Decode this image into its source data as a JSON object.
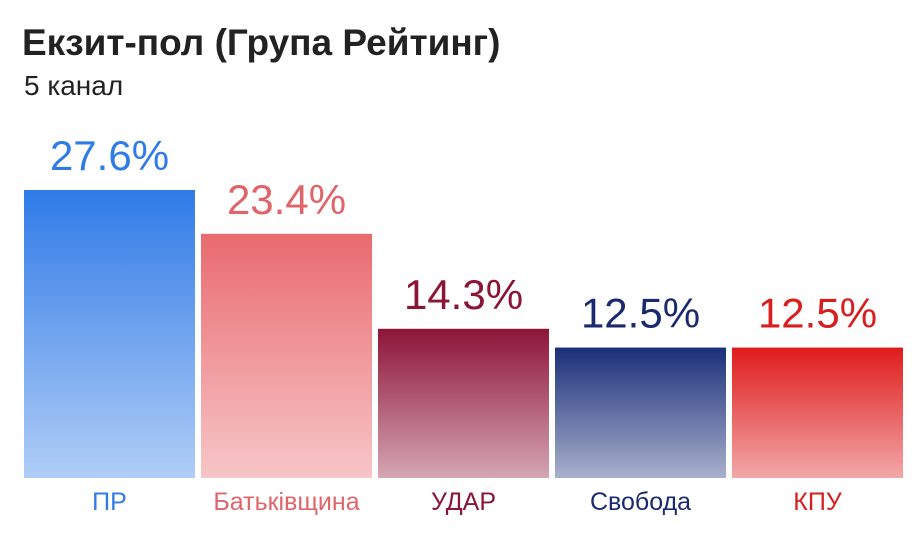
{
  "chart_data": {
    "type": "bar",
    "title": "Екзит-пол (Група Рейтинг)",
    "subtitle": "5 канал",
    "categories": [
      "ПР",
      "Батьківщина",
      "УДАР",
      "Свобода",
      "КПУ"
    ],
    "values": [
      27.6,
      23.4,
      14.3,
      12.5,
      12.5
    ],
    "value_labels": [
      "27.6%",
      "23.4%",
      "14.3%",
      "12.5%",
      "12.5%"
    ],
    "colors": [
      "#2f7be8",
      "#e96a6f",
      "#8e1438",
      "#1b2f7a",
      "#df1b1b"
    ],
    "label_colors": [
      "#2f7be8",
      "#e0656a",
      "#8a1535",
      "#1b2a6e",
      "#d81e1e"
    ],
    "ylim": [
      0,
      27.6
    ],
    "grid": false,
    "legend": "none"
  }
}
